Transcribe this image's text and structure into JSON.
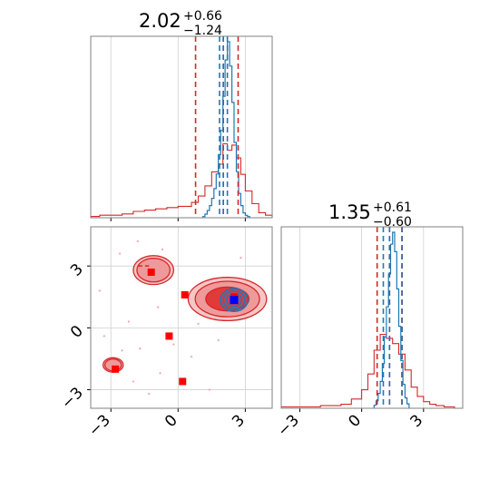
{
  "chart_data": {
    "type": "corner",
    "parameters": [
      {
        "title": {
          "median": "2.02",
          "plus": "+0.66",
          "minus": "−1.24"
        },
        "range": [
          -3.9,
          4.2
        ],
        "ticks": [
          -3,
          0,
          3
        ],
        "tick_labels": [
          "−3",
          "0",
          "3"
        ]
      },
      {
        "title": {
          "median": "1.35",
          "plus": "+0.61",
          "minus": "−0.60"
        },
        "range": [
          -3.9,
          4.9
        ],
        "ticks": [
          -3,
          0,
          3
        ],
        "tick_labels": [
          "−3",
          "0",
          "3"
        ]
      }
    ],
    "colors": {
      "blue": "#1f77b4",
      "red": "#d62728",
      "red_fill": "#ef9a9a",
      "red_dark": "#e03a3a",
      "marker_blue": "#0000ff",
      "marker_red": "#ff0000"
    },
    "grid": true,
    "hist1": {
      "blue": {
        "edges": [
          1.1,
          1.2,
          1.3,
          1.4,
          1.5,
          1.6,
          1.7,
          1.8,
          1.9,
          2.0,
          2.1,
          2.2,
          2.3,
          2.4,
          2.5,
          2.6,
          2.7,
          2.8,
          2.9,
          3.0,
          3.1,
          3.2
        ],
        "counts": [
          1,
          3,
          6,
          10,
          16,
          24,
          36,
          52,
          72,
          100,
          130,
          145,
          125,
          95,
          62,
          38,
          20,
          10,
          4,
          2,
          1
        ]
      },
      "red": {
        "edges": [
          -3.9,
          -3.5,
          -3.0,
          -2.5,
          -2.0,
          -1.5,
          -1.0,
          -0.5,
          0.0,
          0.3,
          0.6,
          0.9,
          1.2,
          1.5,
          1.8,
          2.0,
          2.2,
          2.4,
          2.6,
          2.8,
          3.0,
          3.3,
          3.6,
          3.9,
          4.2
        ],
        "counts": [
          1,
          2,
          2,
          3,
          5,
          6,
          7,
          8,
          9,
          9,
          12,
          17,
          25,
          36,
          42,
          58,
          53,
          57,
          47,
          34,
          21,
          11,
          4,
          2
        ]
      },
      "blue_quantiles": [
        1.85,
        2.02,
        2.2
      ],
      "red_quantiles": [
        0.78,
        2.02,
        2.68
      ]
    },
    "hist2": {
      "blue": {
        "edges": [
          0.6,
          0.7,
          0.8,
          0.9,
          1.0,
          1.1,
          1.2,
          1.3,
          1.4,
          1.5,
          1.6,
          1.7,
          1.8,
          1.9,
          2.0,
          2.1,
          2.2,
          2.3
        ],
        "counts": [
          2,
          5,
          10,
          18,
          30,
          48,
          68,
          90,
          110,
          118,
          105,
          80,
          55,
          32,
          16,
          7,
          3
        ]
      },
      "red": {
        "edges": [
          -3.9,
          -3.0,
          -2.0,
          -1.0,
          -0.5,
          0.0,
          0.3,
          0.6,
          0.9,
          1.2,
          1.5,
          1.8,
          2.1,
          2.4,
          2.7,
          3.0,
          3.3,
          3.6,
          4.0,
          4.5
        ],
        "counts": [
          1,
          1,
          2,
          3,
          7,
          14,
          26,
          44,
          56,
          53,
          49,
          41,
          29,
          16,
          9,
          5,
          3,
          2,
          1
        ]
      },
      "blue_quantiles": [
        1.05,
        1.35,
        1.95
      ],
      "red_quantiles": [
        0.75,
        1.35,
        1.96
      ]
    },
    "joint": {
      "blue_center": [
        2.5,
        1.35
      ],
      "red_centers": [
        [
          2.5,
          1.5
        ],
        [
          0.3,
          1.6
        ],
        [
          -1.2,
          2.7
        ],
        [
          -0.4,
          -0.4
        ],
        [
          -2.8,
          -2.0
        ],
        [
          0.2,
          -2.6
        ]
      ],
      "red_dashes": [
        [
          -1.8,
          3.0
        ],
        [
          -1.3,
          3.0
        ]
      ],
      "blue_levels": [
        0.18,
        0.32,
        0.46,
        0.58
      ],
      "red_regions": [
        {
          "type": "ellipse",
          "cx": 2.2,
          "cy": 1.4,
          "rx": 1.75,
          "ry": 1.05
        },
        {
          "type": "ellipse",
          "cx": -1.1,
          "cy": 2.8,
          "rx": 0.9,
          "ry": 0.7
        },
        {
          "type": "ellipse",
          "cx": -2.9,
          "cy": -1.8,
          "rx": 0.45,
          "ry": 0.35
        }
      ]
    }
  }
}
